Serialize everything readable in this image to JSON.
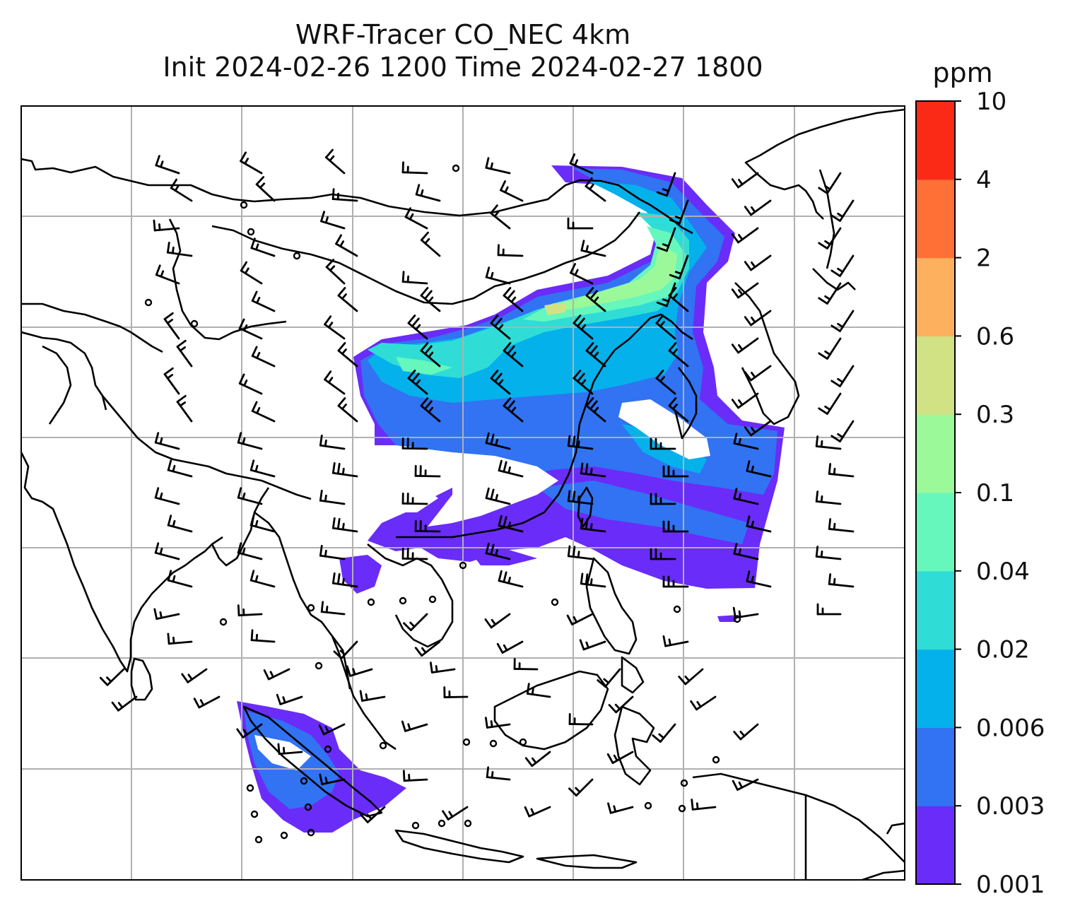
{
  "title": {
    "line1": "WRF-Tracer CO_NEC 4km",
    "line2": "Init 2024-02-26 1200 Time 2024-02-27 1800"
  },
  "colorbar": {
    "unit": "ppm",
    "levels": [
      "0.001",
      "0.003",
      "0.006",
      "0.02",
      "0.04",
      "0.1",
      "0.3",
      "0.6",
      "2",
      "4",
      "10"
    ],
    "colors": [
      "#6a2cf8",
      "#3173f2",
      "#05b1eb",
      "#2fddd6",
      "#66f7bd",
      "#9bf99a",
      "#d1e285",
      "#fdb15e",
      "#ff7036",
      "#fa2a17"
    ]
  },
  "map": {
    "gridlines": true,
    "coastline_color": "#000000",
    "grid_color": "#b0b0b0"
  },
  "chart_data": {
    "type": "heatmap",
    "title": "WRF-Tracer CO_NEC 4km",
    "subtitle": "Init 2024-02-26 1200 Time 2024-02-27 1800",
    "variable": "CO_NEC",
    "unit": "ppm",
    "levels": [
      0.001,
      0.003,
      0.006,
      0.02,
      0.04,
      0.1,
      0.3,
      0.6,
      2,
      4,
      10
    ],
    "overlay": "wind barbs",
    "legend": "right"
  }
}
